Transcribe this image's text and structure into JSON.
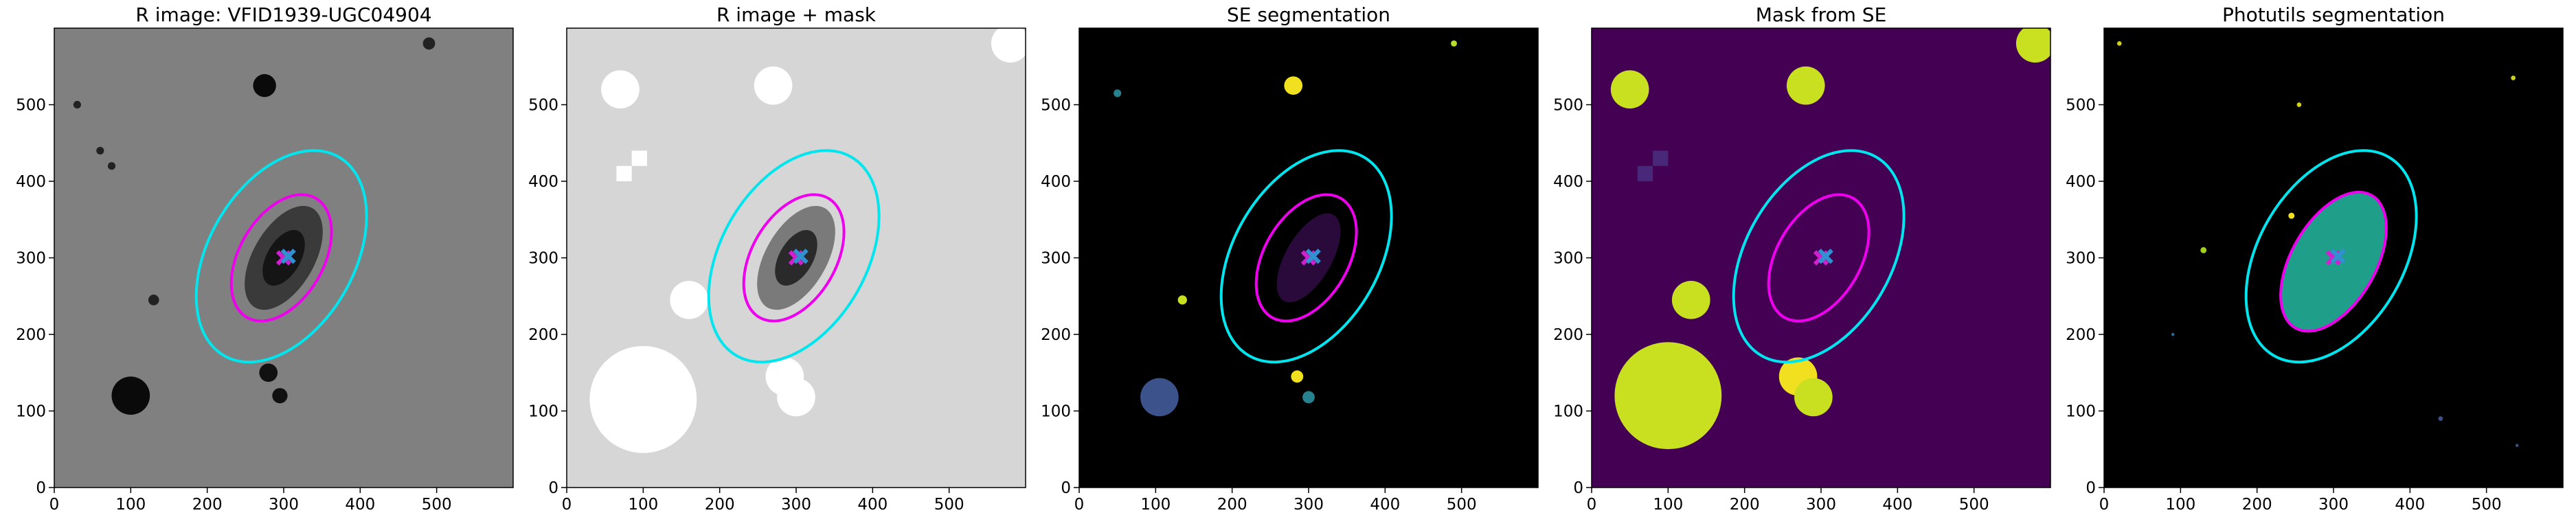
{
  "chart_data": [
    {
      "type": "image",
      "title": "R image: VFID1939-UGC04904",
      "background": "#808080",
      "xlim": [
        0,
        600
      ],
      "ylim": [
        0,
        600
      ],
      "xticks": [
        0,
        100,
        200,
        300,
        400,
        500
      ],
      "yticks": [
        0,
        100,
        200,
        300,
        400,
        500
      ],
      "sources": [
        {
          "x": 300,
          "y": 300,
          "r": 75,
          "r2": 40,
          "angle": 60,
          "color": "#3a3a3a"
        },
        {
          "x": 300,
          "y": 300,
          "r": 40,
          "r2": 22,
          "angle": 60,
          "color": "#151515"
        },
        {
          "x": 275,
          "y": 525,
          "r": 15,
          "color": "#0a0a0a"
        },
        {
          "x": 100,
          "y": 120,
          "r": 25,
          "color": "#0a0a0a"
        },
        {
          "x": 280,
          "y": 150,
          "r": 12,
          "color": "#111111"
        },
        {
          "x": 295,
          "y": 120,
          "r": 10,
          "color": "#111111"
        },
        {
          "x": 490,
          "y": 580,
          "r": 8,
          "color": "#222222"
        },
        {
          "x": 130,
          "y": 245,
          "r": 7,
          "color": "#222222"
        },
        {
          "x": 75,
          "y": 420,
          "r": 5,
          "color": "#222222"
        },
        {
          "x": 60,
          "y": 440,
          "r": 5,
          "color": "#222222"
        },
        {
          "x": 30,
          "y": 500,
          "r": 5,
          "color": "#222222"
        }
      ],
      "ellipses": [
        {
          "cx": 297,
          "cy": 302,
          "a": 150,
          "b": 95,
          "angle": 60,
          "color": "#00e5ee"
        },
        {
          "cx": 297,
          "cy": 300,
          "a": 90,
          "b": 55,
          "angle": 60,
          "color": "#ee00ee"
        }
      ],
      "markers": [
        {
          "x": 300,
          "y": 300,
          "color": "#d020d0"
        },
        {
          "x": 306,
          "y": 302,
          "color": "#3090d0"
        }
      ]
    },
    {
      "type": "image",
      "title": "R image + mask",
      "background": "#d6d6d6",
      "xlim": [
        0,
        600
      ],
      "ylim": [
        0,
        600
      ],
      "xticks": [
        0,
        100,
        200,
        300,
        400,
        500
      ],
      "yticks": [
        0,
        100,
        200,
        300,
        400,
        500
      ],
      "sources": [
        {
          "x": 300,
          "y": 300,
          "r": 75,
          "r2": 40,
          "angle": 60,
          "color": "#7a7a7a"
        },
        {
          "x": 300,
          "y": 300,
          "r": 40,
          "r2": 22,
          "angle": 60,
          "color": "#2a2a2a"
        },
        {
          "x": 70,
          "y": 520,
          "r": 25,
          "color": "#ffffff"
        },
        {
          "x": 270,
          "y": 525,
          "r": 25,
          "color": "#ffffff"
        },
        {
          "x": 580,
          "y": 580,
          "r": 25,
          "color": "#ffffff"
        },
        {
          "x": 160,
          "y": 245,
          "r": 25,
          "color": "#ffffff"
        },
        {
          "x": 100,
          "y": 115,
          "r": 70,
          "color": "#ffffff"
        },
        {
          "x": 285,
          "y": 145,
          "r": 25,
          "color": "#ffffff"
        },
        {
          "x": 300,
          "y": 118,
          "r": 25,
          "color": "#ffffff"
        },
        {
          "x": 75,
          "y": 410,
          "r": 10,
          "shape": "square",
          "color": "#ffffff"
        },
        {
          "x": 95,
          "y": 430,
          "r": 10,
          "shape": "square",
          "color": "#ffffff"
        }
      ],
      "ellipses": [
        {
          "cx": 297,
          "cy": 302,
          "a": 150,
          "b": 95,
          "angle": 60,
          "color": "#00e5ee"
        },
        {
          "cx": 297,
          "cy": 300,
          "a": 90,
          "b": 55,
          "angle": 60,
          "color": "#ee00ee"
        }
      ],
      "markers": [
        {
          "x": 300,
          "y": 300,
          "color": "#d020d0"
        },
        {
          "x": 306,
          "y": 302,
          "color": "#3090d0"
        }
      ]
    },
    {
      "type": "image",
      "title": "SE segmentation",
      "background": "#000000",
      "xlim": [
        0,
        600
      ],
      "ylim": [
        0,
        600
      ],
      "xticks": [
        0,
        100,
        200,
        300,
        400,
        500
      ],
      "yticks": [
        0,
        100,
        200,
        300,
        400,
        500
      ],
      "sources": [
        {
          "x": 300,
          "y": 300,
          "r": 65,
          "r2": 30,
          "angle": 60,
          "color": "#2a0a3a"
        },
        {
          "x": 280,
          "y": 525,
          "r": 12,
          "color": "#f0e020"
        },
        {
          "x": 105,
          "y": 118,
          "r": 25,
          "color": "#3b528b"
        },
        {
          "x": 490,
          "y": 580,
          "r": 4,
          "color": "#b5de2b"
        },
        {
          "x": 135,
          "y": 245,
          "r": 6,
          "color": "#c8e020"
        },
        {
          "x": 285,
          "y": 145,
          "r": 8,
          "color": "#f0e020"
        },
        {
          "x": 300,
          "y": 118,
          "r": 8,
          "color": "#26828e"
        },
        {
          "x": 50,
          "y": 515,
          "r": 5,
          "color": "#26828e"
        }
      ],
      "ellipses": [
        {
          "cx": 297,
          "cy": 302,
          "a": 150,
          "b": 95,
          "angle": 60,
          "color": "#00e5ee"
        },
        {
          "cx": 297,
          "cy": 300,
          "a": 90,
          "b": 55,
          "angle": 60,
          "color": "#ee00ee"
        }
      ],
      "markers": [
        {
          "x": 300,
          "y": 300,
          "color": "#d020d0"
        },
        {
          "x": 306,
          "y": 302,
          "color": "#3090d0"
        }
      ]
    },
    {
      "type": "image",
      "title": "Mask from SE",
      "background": "#440154",
      "xlim": [
        0,
        600
      ],
      "ylim": [
        0,
        600
      ],
      "xticks": [
        0,
        100,
        200,
        300,
        400,
        500
      ],
      "yticks": [
        0,
        100,
        200,
        300,
        400,
        500
      ],
      "sources": [
        {
          "x": 50,
          "y": 520,
          "r": 25,
          "color": "#c8e020"
        },
        {
          "x": 280,
          "y": 525,
          "r": 25,
          "color": "#c8e020"
        },
        {
          "x": 580,
          "y": 580,
          "r": 25,
          "color": "#c8e020"
        },
        {
          "x": 130,
          "y": 245,
          "r": 25,
          "color": "#c8e020"
        },
        {
          "x": 100,
          "y": 120,
          "r": 70,
          "color": "#c8e020"
        },
        {
          "x": 270,
          "y": 145,
          "r": 25,
          "color": "#f0e020"
        },
        {
          "x": 290,
          "y": 118,
          "r": 25,
          "color": "#c8e020"
        },
        {
          "x": 70,
          "y": 410,
          "r": 10,
          "shape": "square",
          "color": "#482878"
        },
        {
          "x": 90,
          "y": 430,
          "r": 10,
          "shape": "square",
          "color": "#482878"
        }
      ],
      "ellipses": [
        {
          "cx": 297,
          "cy": 302,
          "a": 150,
          "b": 95,
          "angle": 60,
          "color": "#00e5ee"
        },
        {
          "cx": 297,
          "cy": 300,
          "a": 90,
          "b": 55,
          "angle": 60,
          "color": "#ee00ee"
        }
      ],
      "markers": [
        {
          "x": 300,
          "y": 300,
          "color": "#d020d0"
        },
        {
          "x": 306,
          "y": 302,
          "color": "#3090d0"
        }
      ]
    },
    {
      "type": "image",
      "title": "Photutils segmentation",
      "background": "#000000",
      "xlim": [
        0,
        600
      ],
      "ylim": [
        0,
        600
      ],
      "xticks": [
        0,
        100,
        200,
        300,
        400,
        500
      ],
      "yticks": [
        0,
        100,
        200,
        300,
        400,
        500
      ],
      "sources": [
        {
          "x": 300,
          "y": 295,
          "r": 100,
          "r2": 55,
          "angle": 60,
          "color": "#1f9e89"
        },
        {
          "x": 20,
          "y": 580,
          "r": 3,
          "color": "#d0d020"
        },
        {
          "x": 255,
          "y": 500,
          "r": 3,
          "color": "#d0d020"
        },
        {
          "x": 535,
          "y": 535,
          "r": 3,
          "color": "#d0d020"
        },
        {
          "x": 245,
          "y": 355,
          "r": 4,
          "color": "#f0e020"
        },
        {
          "x": 130,
          "y": 310,
          "r": 4,
          "color": "#a0d020"
        },
        {
          "x": 440,
          "y": 90,
          "r": 3,
          "color": "#3b528b"
        },
        {
          "x": 540,
          "y": 55,
          "r": 2,
          "color": "#3b528b"
        },
        {
          "x": 90,
          "y": 200,
          "r": 2,
          "color": "#31688e"
        }
      ],
      "ellipses": [
        {
          "cx": 297,
          "cy": 302,
          "a": 150,
          "b": 95,
          "angle": 60,
          "color": "#00e5ee"
        },
        {
          "cx": 300,
          "cy": 295,
          "a": 100,
          "b": 55,
          "angle": 60,
          "color": "#ee00ee"
        }
      ],
      "markers": [
        {
          "x": 300,
          "y": 300,
          "color": "#d020d0"
        },
        {
          "x": 306,
          "y": 302,
          "color": "#3090d0"
        }
      ]
    }
  ]
}
